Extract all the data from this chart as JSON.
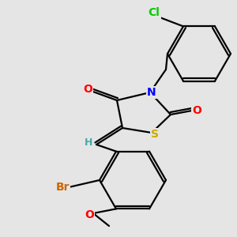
{
  "background_color": "#e5e5e5",
  "figsize": [
    3.0,
    3.0
  ],
  "dpi": 100,
  "atom_colors": {
    "S": "#ccaa00",
    "N": "#0000ff",
    "O": "#ff0000",
    "Cl": "#00cc00",
    "Br": "#cc6600",
    "H": "#44aaaa",
    "C": "#000000"
  }
}
